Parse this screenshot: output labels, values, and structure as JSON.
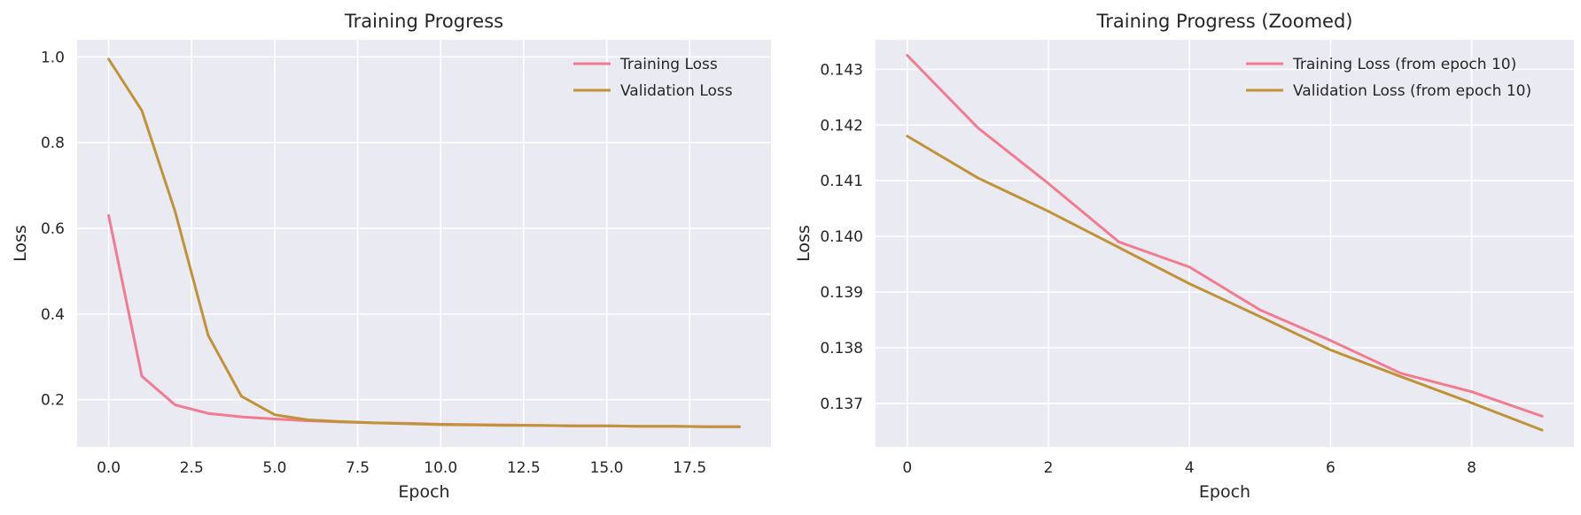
{
  "chart_data": [
    {
      "type": "line",
      "title": "Training Progress",
      "xlabel": "Epoch",
      "ylabel": "Loss",
      "xlim": [
        -0.95,
        19.95
      ],
      "ylim": [
        0.09,
        1.04
      ],
      "xticks": [
        0,
        2.5,
        5,
        7.5,
        10,
        12.5,
        15,
        17.5
      ],
      "xtick_labels": [
        "0.0",
        "2.5",
        "5.0",
        "7.5",
        "10.0",
        "12.5",
        "15.0",
        "17.5"
      ],
      "yticks": [
        0.2,
        0.4,
        0.6,
        0.8,
        1.0
      ],
      "ytick_labels": [
        "0.2",
        "0.4",
        "0.6",
        "0.8",
        "1.0"
      ],
      "grid": true,
      "legend": "top-right",
      "x": [
        0,
        1,
        2,
        3,
        4,
        5,
        6,
        7,
        8,
        9,
        10,
        11,
        12,
        13,
        14,
        15,
        16,
        17,
        18,
        19
      ],
      "series": [
        {
          "name": "Training Loss",
          "color": "#f37b91",
          "values": [
            0.63,
            0.255,
            0.188,
            0.168,
            0.16,
            0.155,
            0.151,
            0.148,
            0.146,
            0.145,
            0.143,
            0.142,
            0.141,
            0.14,
            0.139,
            0.139,
            0.138,
            0.138,
            0.137,
            0.137
          ]
        },
        {
          "name": "Validation Loss",
          "color": "#c09339",
          "values": [
            0.995,
            0.875,
            0.64,
            0.35,
            0.208,
            0.165,
            0.153,
            0.149,
            0.146,
            0.144,
            0.142,
            0.141,
            0.14,
            0.14,
            0.139,
            0.139,
            0.138,
            0.138,
            0.137,
            0.137
          ]
        }
      ]
    },
    {
      "type": "line",
      "title": "Training Progress (Zoomed)",
      "xlabel": "Epoch",
      "ylabel": "Loss",
      "xlim": [
        -0.45,
        9.45
      ],
      "ylim": [
        0.13622,
        0.14353
      ],
      "xticks": [
        0,
        2,
        4,
        6,
        8
      ],
      "xtick_labels": [
        "0",
        "2",
        "4",
        "6",
        "8"
      ],
      "yticks": [
        0.137,
        0.138,
        0.139,
        0.14,
        0.141,
        0.142,
        0.143
      ],
      "ytick_labels": [
        "0.137",
        "0.138",
        "0.139",
        "0.140",
        "0.141",
        "0.142",
        "0.143"
      ],
      "grid": true,
      "legend": "top-right",
      "x": [
        0,
        1,
        2,
        3,
        4,
        5,
        6,
        7,
        8,
        9
      ],
      "series": [
        {
          "name": "Training Loss (from epoch 10)",
          "color": "#f37b91",
          "values": [
            0.14325,
            0.14195,
            0.14095,
            0.1399,
            0.13945,
            0.13868,
            0.13813,
            0.13754,
            0.13721,
            0.13677
          ]
        },
        {
          "name": "Validation Loss (from epoch 10)",
          "color": "#c09339",
          "values": [
            0.1418,
            0.14105,
            0.14045,
            0.1398,
            0.13915,
            0.13856,
            0.13796,
            0.13748,
            0.13701,
            0.13652
          ]
        }
      ]
    }
  ]
}
